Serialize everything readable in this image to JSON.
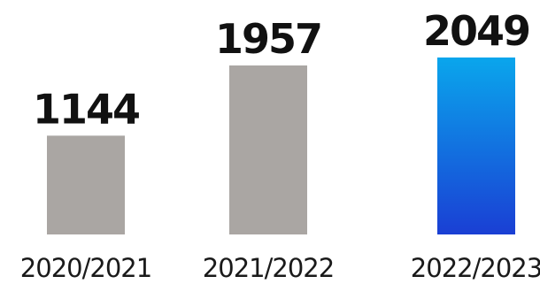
{
  "chart_data": {
    "type": "bar",
    "categories": [
      "2020/2021",
      "2021/2022",
      "2022/2023"
    ],
    "values": [
      1144,
      1957,
      2049
    ],
    "data_labels": [
      "1144",
      "1957",
      "2049"
    ],
    "title": "",
    "xlabel": "",
    "ylabel": "",
    "ylim": [
      0,
      2049
    ],
    "grid": false,
    "legend": "none",
    "colors": {
      "default_bar": "#aaa6a3",
      "highlight_bar_top": "#0aa6ec",
      "highlight_bar_bottom": "#1a3fd4",
      "highlight_index": 2
    }
  }
}
